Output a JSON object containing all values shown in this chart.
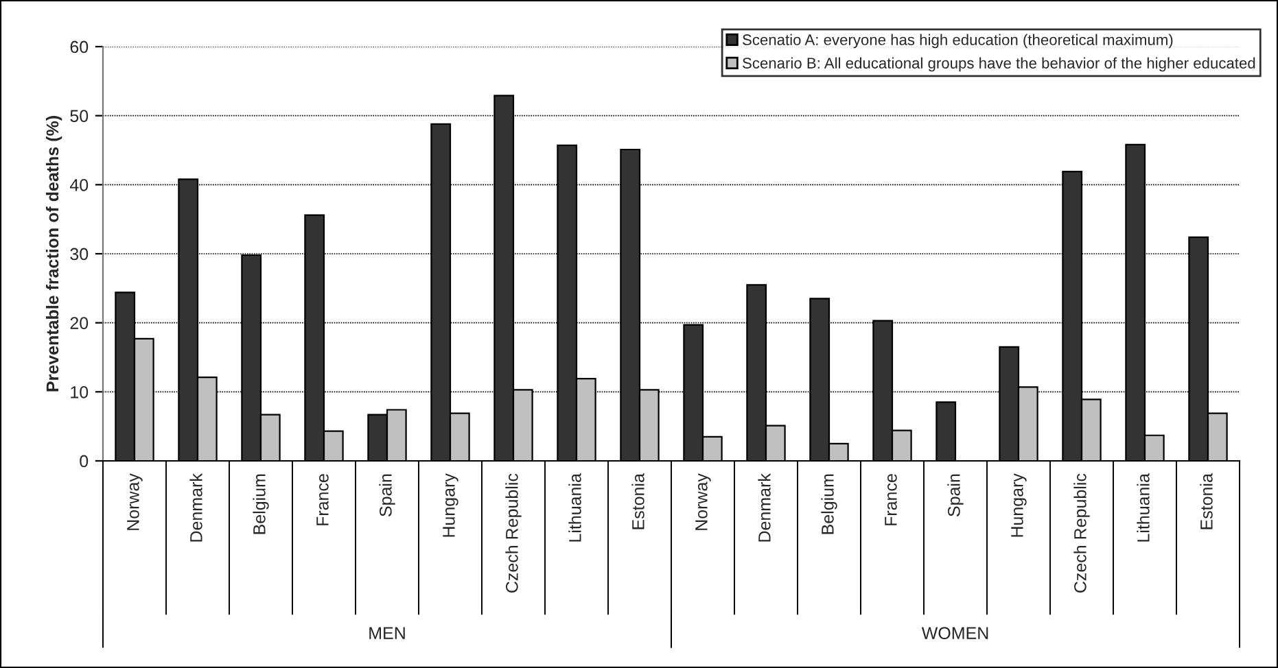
{
  "chart_data": {
    "type": "bar",
    "ylabel": "Preventable fraction of deaths (%)",
    "categories": [
      "Norway",
      "Denmark",
      "Belgium",
      "France",
      "Spain",
      "Hungary",
      "Czech Republic",
      "Lithuania",
      "Estonia",
      "Norway",
      "Denmark",
      "Belgium",
      "France",
      "Spain",
      "Hungary",
      "Czech Republic",
      "Lithuania",
      "Estonia"
    ],
    "series": [
      {
        "name": "Scenatio A: everyone has high education (theoretical maximum)",
        "color": "#333333",
        "values": [
          24.4,
          40.8,
          29.8,
          35.6,
          6.7,
          48.8,
          52.9,
          45.7,
          45.1,
          19.7,
          25.5,
          23.5,
          20.3,
          8.5,
          16.5,
          41.9,
          45.8,
          32.4
        ]
      },
      {
        "name": "Scenario B: All educational groups have the behavior of the higher educated",
        "color": "#c0c0c0",
        "values": [
          17.7,
          12.1,
          6.7,
          4.3,
          7.4,
          6.9,
          10.3,
          11.9,
          10.3,
          3.5,
          5.1,
          2.5,
          4.4,
          null,
          10.7,
          8.9,
          3.7,
          6.9
        ]
      }
    ],
    "annotations": [
      "MEN",
      "WOMEN"
    ],
    "ylim": [
      0,
      60
    ],
    "yticks": [
      0,
      10,
      20,
      30,
      40,
      50,
      60
    ],
    "grid": "y",
    "legend": "top right"
  }
}
